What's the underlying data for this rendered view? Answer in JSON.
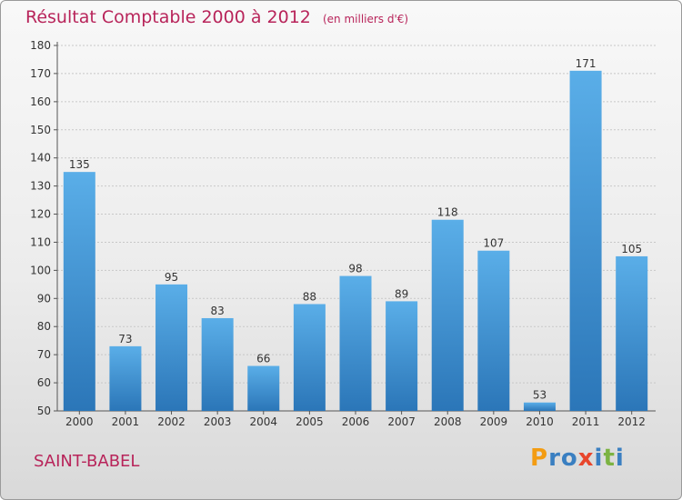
{
  "title": "Résultat Comptable 2000 à 2012",
  "unit_note": "(en milliers d'€)",
  "city": "SAINT-BABEL",
  "logo": {
    "letters": [
      "P",
      "r",
      "o",
      "x",
      "i",
      "t",
      "i"
    ],
    "colors": [
      "#f39c12",
      "#3a7fc1",
      "#3a7fc1",
      "#e8462c",
      "#3a7fc1",
      "#7cb342",
      "#3a7fc1"
    ]
  },
  "colors": {
    "bar": "#4a9fe0",
    "bar_dark": "#2b76b8",
    "title": "#b8245a"
  },
  "chart_data": {
    "type": "bar",
    "title": "Résultat Comptable 2000 à 2012",
    "categories": [
      "2000",
      "2001",
      "2002",
      "2003",
      "2004",
      "2005",
      "2006",
      "2007",
      "2008",
      "2009",
      "2010",
      "2011",
      "2012"
    ],
    "values": [
      135,
      73,
      95,
      83,
      66,
      88,
      98,
      89,
      118,
      107,
      53,
      171,
      105
    ],
    "ylim": [
      50,
      180
    ],
    "yticks": [
      50,
      60,
      70,
      80,
      90,
      100,
      110,
      120,
      130,
      140,
      150,
      160,
      170,
      180
    ],
    "grid": true
  }
}
